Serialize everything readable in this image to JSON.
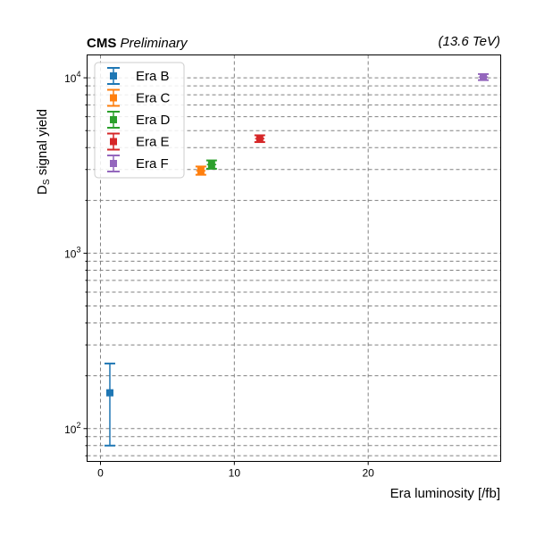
{
  "chart_data": {
    "type": "scatter",
    "header_left_bold": "CMS",
    "header_left_italic": "Preliminary",
    "header_right": "(13.6 TeV)",
    "xlabel": "Era luminosity [/fb]",
    "ylabel_main": "D",
    "ylabel_sub": "S",
    "ylabel_rest": " signal yield",
    "xlim": [
      -1,
      29.9
    ],
    "ylim": [
      65,
      13500
    ],
    "yscale": "log",
    "grid": true,
    "legend_position": "upper-left",
    "x_ticks": [
      {
        "value": 0,
        "label": "0"
      },
      {
        "value": 10,
        "label": "10"
      },
      {
        "value": 20,
        "label": "20"
      }
    ],
    "y_major_ticks": [
      {
        "value": 100,
        "base": "10",
        "exp": "2"
      },
      {
        "value": 1000,
        "base": "10",
        "exp": "3"
      },
      {
        "value": 10000,
        "base": "10",
        "exp": "4"
      }
    ],
    "y_minor_ticks": [
      70,
      80,
      90,
      200,
      300,
      400,
      500,
      600,
      700,
      800,
      900,
      2000,
      3000,
      4000,
      5000,
      6000,
      7000,
      8000,
      9000
    ],
    "series": [
      {
        "name": "Era B",
        "color": "#1f77b4",
        "x": 0.7,
        "y": 160,
        "yerr_low": 80,
        "yerr_high": 235,
        "xerr": 0.15
      },
      {
        "name": "Era C",
        "color": "#ff7f0e",
        "x": 7.5,
        "y": 2950,
        "yerr_low": 2800,
        "yerr_high": 3120,
        "xerr": 0.35
      },
      {
        "name": "Era D",
        "color": "#2ca02c",
        "x": 8.3,
        "y": 3200,
        "yerr_low": 3030,
        "yerr_high": 3380,
        "xerr": 0.35
      },
      {
        "name": "Era E",
        "color": "#d62728",
        "x": 11.9,
        "y": 4500,
        "yerr_low": 4300,
        "yerr_high": 4700,
        "xerr": 0.35
      },
      {
        "name": "Era F",
        "color": "#9467bd",
        "x": 28.6,
        "y": 10100,
        "yerr_low": 9700,
        "yerr_high": 10500,
        "xerr": 0.35
      }
    ]
  }
}
